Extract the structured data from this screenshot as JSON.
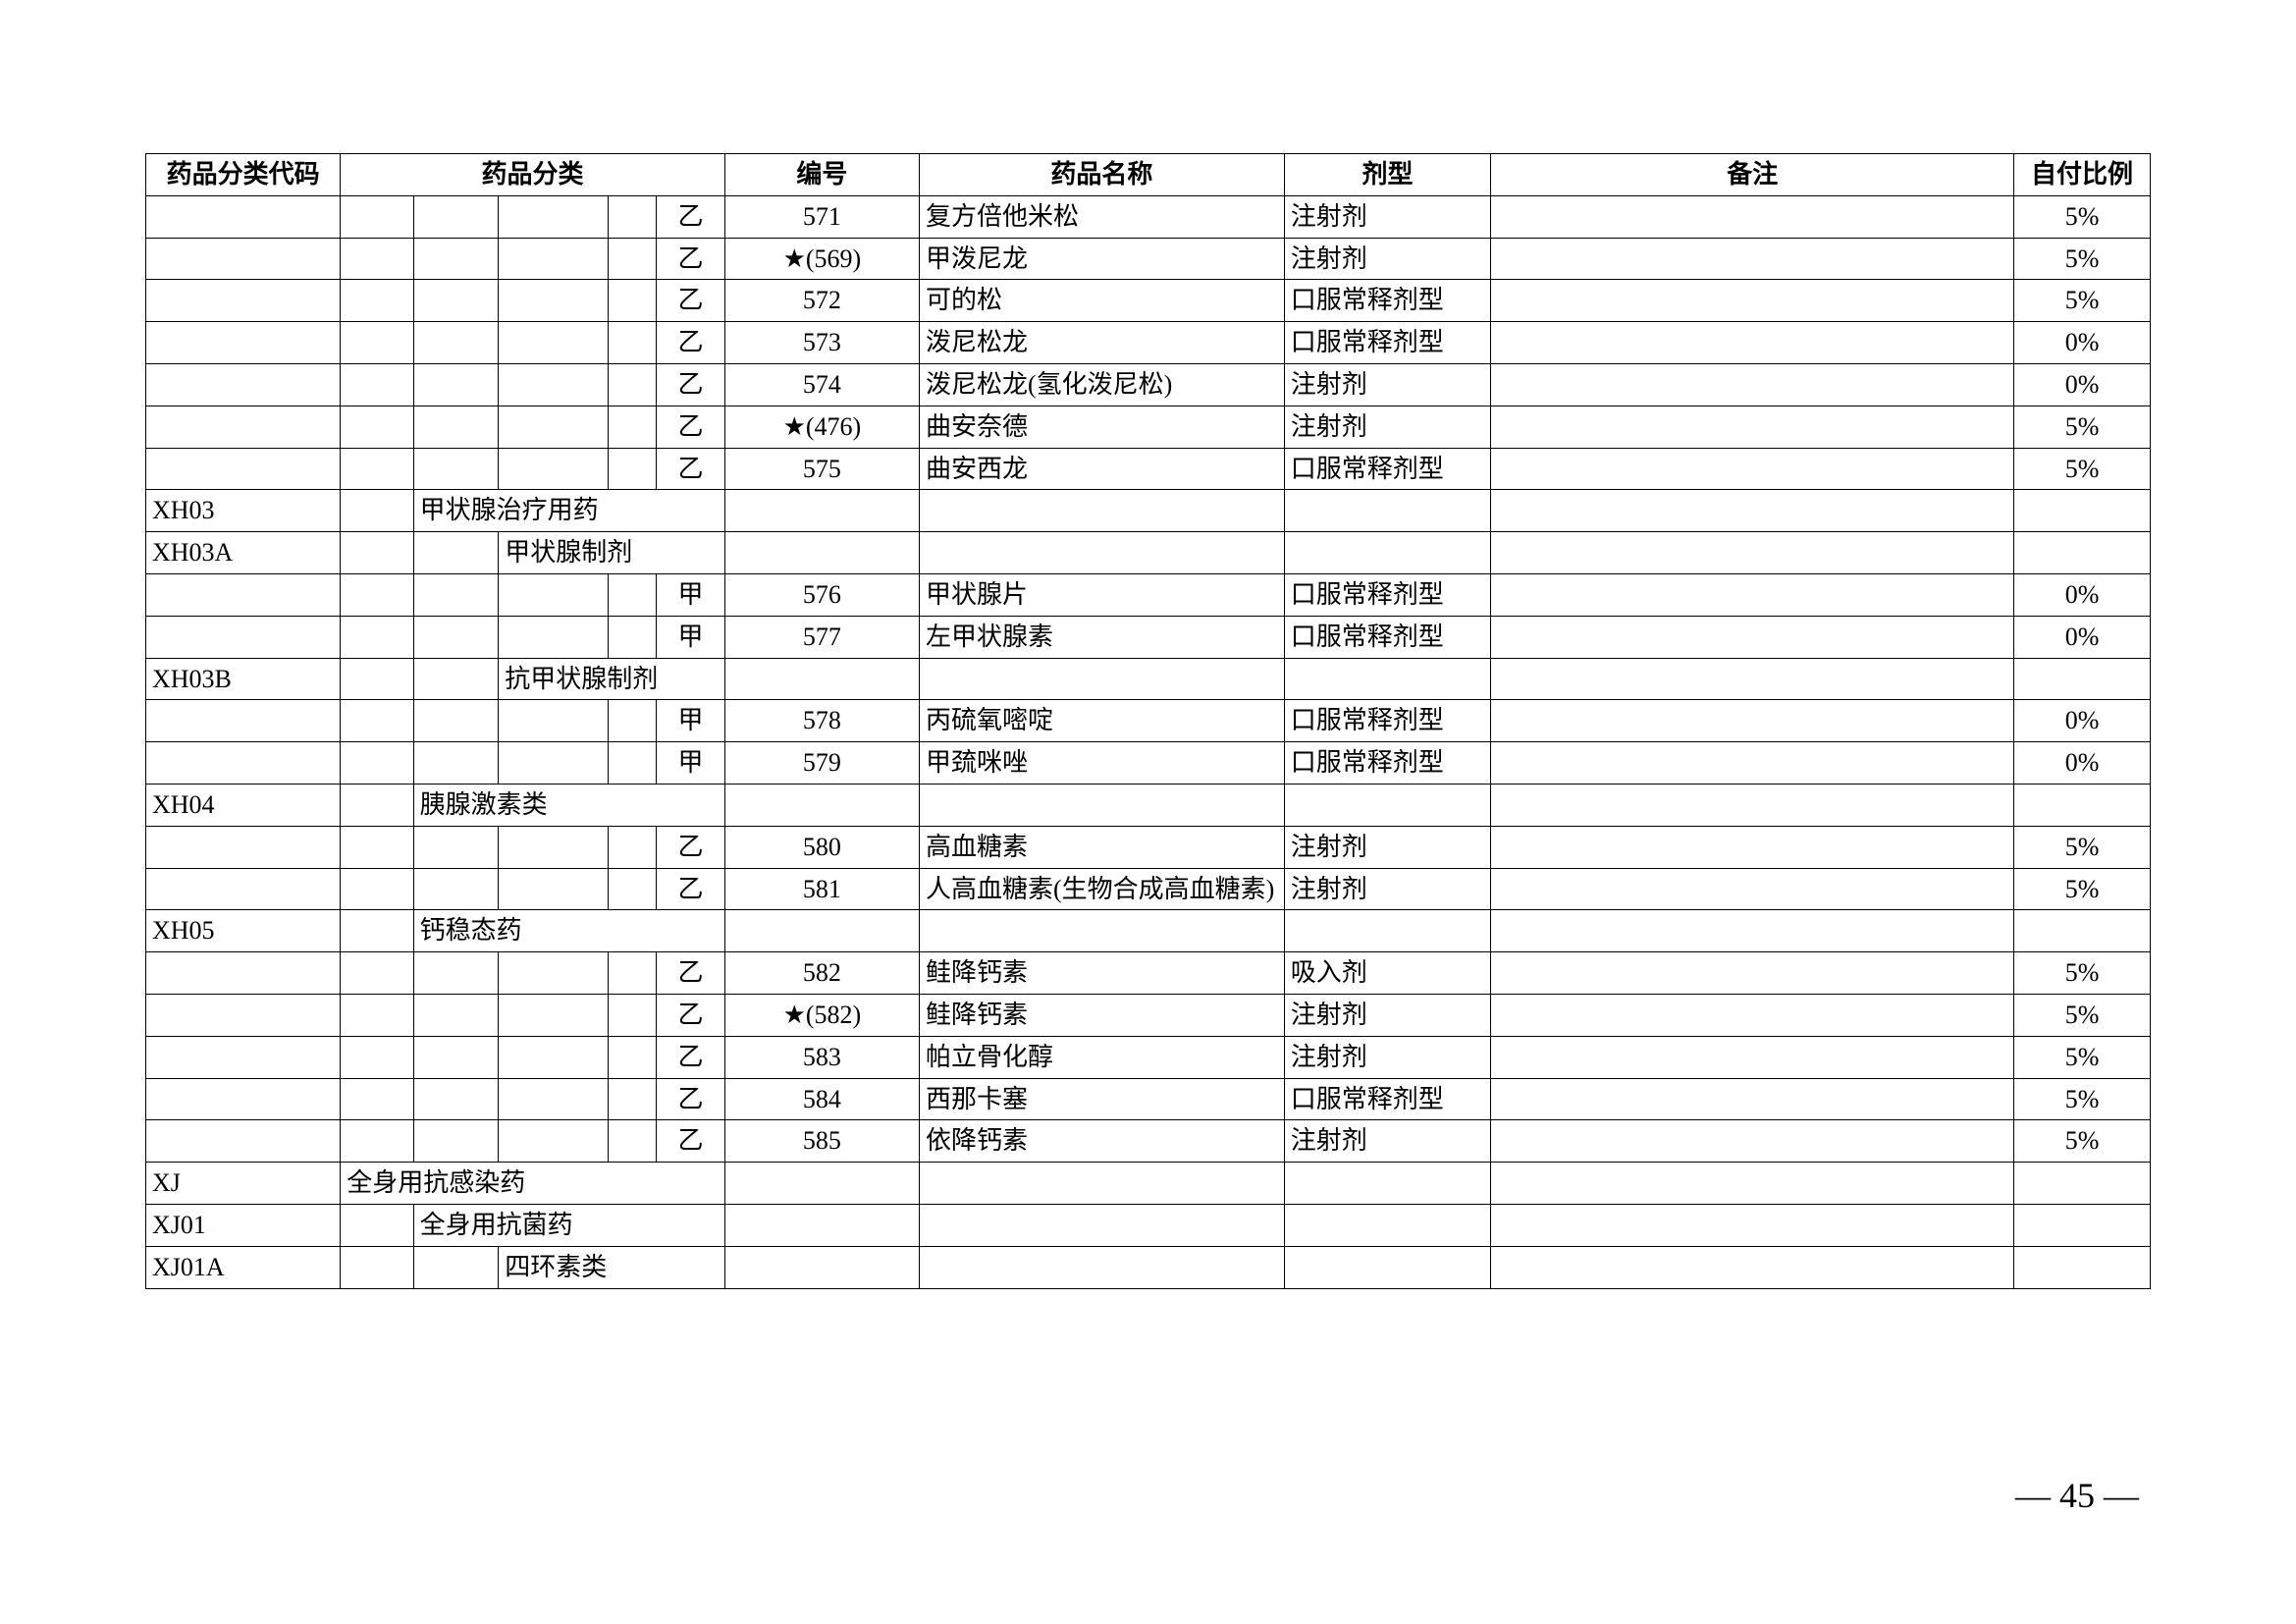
{
  "headers": {
    "code": "药品分类代码",
    "category": "药品分类",
    "number": "编号",
    "name": "药品名称",
    "form": "剂型",
    "note": "备注",
    "ratio": "自付比例"
  },
  "rows": [
    {
      "code": "",
      "catA": "",
      "catB": "",
      "catC": "",
      "catD": "",
      "catE": "乙",
      "num": "571",
      "name": "复方倍他米松",
      "form": "注射剂",
      "note": "",
      "ratio": "5%"
    },
    {
      "code": "",
      "catA": "",
      "catB": "",
      "catC": "",
      "catD": "",
      "catE": "乙",
      "num": "★(569)",
      "name": "甲泼尼龙",
      "form": "注射剂",
      "note": "",
      "ratio": "5%"
    },
    {
      "code": "",
      "catA": "",
      "catB": "",
      "catC": "",
      "catD": "",
      "catE": "乙",
      "num": "572",
      "name": "可的松",
      "form": "口服常释剂型",
      "note": "",
      "ratio": "5%"
    },
    {
      "code": "",
      "catA": "",
      "catB": "",
      "catC": "",
      "catD": "",
      "catE": "乙",
      "num": "573",
      "name": "泼尼松龙",
      "form": "口服常释剂型",
      "note": "",
      "ratio": "0%"
    },
    {
      "code": "",
      "catA": "",
      "catB": "",
      "catC": "",
      "catD": "",
      "catE": "乙",
      "num": "574",
      "name": "泼尼松龙(氢化泼尼松)",
      "form": "注射剂",
      "note": "",
      "ratio": "0%"
    },
    {
      "code": "",
      "catA": "",
      "catB": "",
      "catC": "",
      "catD": "",
      "catE": "乙",
      "num": "★(476)",
      "name": "曲安奈德",
      "form": "注射剂",
      "note": "",
      "ratio": "5%"
    },
    {
      "code": "",
      "catA": "",
      "catB": "",
      "catC": "",
      "catD": "",
      "catE": "乙",
      "num": "575",
      "name": "曲安西龙",
      "form": "口服常释剂型",
      "note": "",
      "ratio": "5%"
    },
    {
      "code": "XH03",
      "catA": "",
      "catB": "甲状腺治疗用药",
      "catC": "",
      "catD": "",
      "catE": "",
      "num": "",
      "name": "",
      "form": "",
      "note": "",
      "ratio": "",
      "span": "b4"
    },
    {
      "code": "XH03A",
      "catA": "",
      "catB": "",
      "catC": "甲状腺制剂",
      "catD": "",
      "catE": "",
      "num": "",
      "name": "",
      "form": "",
      "note": "",
      "ratio": "",
      "span": "c3"
    },
    {
      "code": "",
      "catA": "",
      "catB": "",
      "catC": "",
      "catD": "",
      "catE": "甲",
      "num": "576",
      "name": "甲状腺片",
      "form": "口服常释剂型",
      "note": "",
      "ratio": "0%"
    },
    {
      "code": "",
      "catA": "",
      "catB": "",
      "catC": "",
      "catD": "",
      "catE": "甲",
      "num": "577",
      "name": "左甲状腺素",
      "form": "口服常释剂型",
      "note": "",
      "ratio": "0%"
    },
    {
      "code": "XH03B",
      "catA": "",
      "catB": "",
      "catC": "抗甲状腺制剂",
      "catD": "",
      "catE": "",
      "num": "",
      "name": "",
      "form": "",
      "note": "",
      "ratio": "",
      "span": "c3"
    },
    {
      "code": "",
      "catA": "",
      "catB": "",
      "catC": "",
      "catD": "",
      "catE": "甲",
      "num": "578",
      "name": "丙硫氧嘧啶",
      "form": "口服常释剂型",
      "note": "",
      "ratio": "0%"
    },
    {
      "code": "",
      "catA": "",
      "catB": "",
      "catC": "",
      "catD": "",
      "catE": "甲",
      "num": "579",
      "name": "甲巯咪唑",
      "form": "口服常释剂型",
      "note": "",
      "ratio": "0%"
    },
    {
      "code": "XH04",
      "catA": "",
      "catB": "胰腺激素类",
      "catC": "",
      "catD": "",
      "catE": "",
      "num": "",
      "name": "",
      "form": "",
      "note": "",
      "ratio": "",
      "span": "b4"
    },
    {
      "code": "",
      "catA": "",
      "catB": "",
      "catC": "",
      "catD": "",
      "catE": "乙",
      "num": "580",
      "name": "高血糖素",
      "form": "注射剂",
      "note": "",
      "ratio": "5%"
    },
    {
      "code": "",
      "catA": "",
      "catB": "",
      "catC": "",
      "catD": "",
      "catE": "乙",
      "num": "581",
      "name": "人高血糖素(生物合成高血糖素)",
      "form": "注射剂",
      "note": "",
      "ratio": "5%"
    },
    {
      "code": "XH05",
      "catA": "",
      "catB": "钙稳态药",
      "catC": "",
      "catD": "",
      "catE": "",
      "num": "",
      "name": "",
      "form": "",
      "note": "",
      "ratio": "",
      "span": "b4"
    },
    {
      "code": "",
      "catA": "",
      "catB": "",
      "catC": "",
      "catD": "",
      "catE": "乙",
      "num": "582",
      "name": "鲑降钙素",
      "form": "吸入剂",
      "note": "",
      "ratio": "5%"
    },
    {
      "code": "",
      "catA": "",
      "catB": "",
      "catC": "",
      "catD": "",
      "catE": "乙",
      "num": "★(582)",
      "name": "鲑降钙素",
      "form": "注射剂",
      "note": "",
      "ratio": "5%"
    },
    {
      "code": "",
      "catA": "",
      "catB": "",
      "catC": "",
      "catD": "",
      "catE": "乙",
      "num": "583",
      "name": "帕立骨化醇",
      "form": "注射剂",
      "note": "",
      "ratio": "5%"
    },
    {
      "code": "",
      "catA": "",
      "catB": "",
      "catC": "",
      "catD": "",
      "catE": "乙",
      "num": "584",
      "name": "西那卡塞",
      "form": "口服常释剂型",
      "note": "",
      "ratio": "5%"
    },
    {
      "code": "",
      "catA": "",
      "catB": "",
      "catC": "",
      "catD": "",
      "catE": "乙",
      "num": "585",
      "name": "依降钙素",
      "form": "注射剂",
      "note": "",
      "ratio": "5%"
    },
    {
      "code": "XJ",
      "catA": "全身用抗感染药",
      "catB": "",
      "catC": "",
      "catD": "",
      "catE": "",
      "num": "",
      "name": "",
      "form": "",
      "note": "",
      "ratio": "",
      "span": "a5"
    },
    {
      "code": "XJ01",
      "catA": "",
      "catB": "全身用抗菌药",
      "catC": "",
      "catD": "",
      "catE": "",
      "num": "",
      "name": "",
      "form": "",
      "note": "",
      "ratio": "",
      "span": "b4"
    },
    {
      "code": "XJ01A",
      "catA": "",
      "catB": "",
      "catC": "四环素类",
      "catD": "",
      "catE": "",
      "num": "",
      "name": "",
      "form": "",
      "note": "",
      "ratio": "",
      "span": "c3"
    }
  ],
  "pageNumber": "— 45 —",
  "style": {
    "border_color": "#000000",
    "background_color": "#ffffff",
    "header_fontsize": 26,
    "cell_fontsize": 26,
    "pagenum_fontsize": 36
  }
}
